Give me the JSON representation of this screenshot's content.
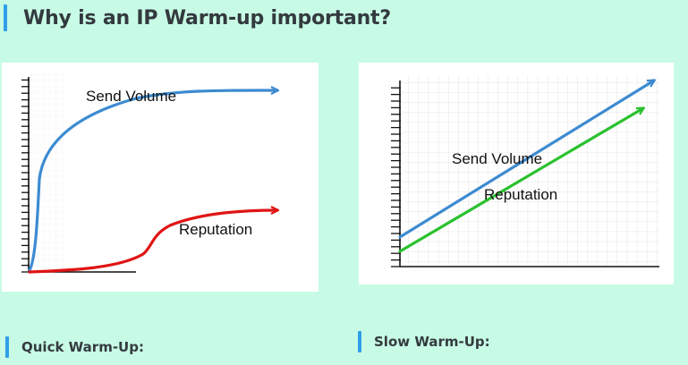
{
  "page": {
    "title": "Why is an IP Warm-up important?",
    "accent_color": "#2f9fe8",
    "background_color": "#c8fbe5"
  },
  "diagrams": {
    "quick": {
      "send_label": "Send Volume",
      "reputation_label": "Reputation",
      "send_color": "#3d8bd1",
      "reputation_color": "#e01414"
    },
    "slow": {
      "send_label": "Send Volume",
      "reputation_label": "Reputation",
      "send_color": "#3d8bd1",
      "reputation_color": "#2ac12e"
    }
  },
  "sections": {
    "quick_label": "Quick Warm-Up:",
    "slow_label": "Slow Warm-Up:"
  }
}
